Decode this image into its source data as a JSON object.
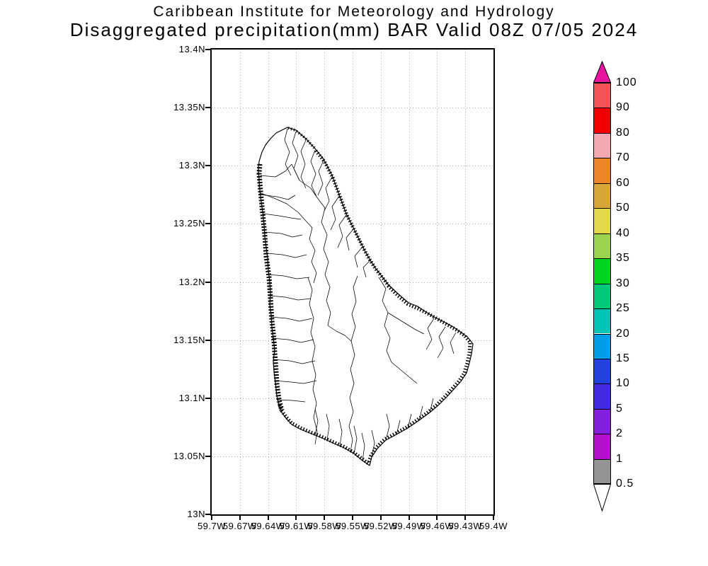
{
  "title": {
    "line1": "Caribbean Institute for Meteorology and Hydrology",
    "line2": "Disaggregated precipitation(mm) BAR Valid 08Z 07/05 2024"
  },
  "map": {
    "y_axis": {
      "labels": [
        "13.4N",
        "13.35N",
        "13.3N",
        "13.25N",
        "13.2N",
        "13.15N",
        "13.1N",
        "13.05N",
        "13N"
      ]
    },
    "x_axis": {
      "labels": [
        "59.7W",
        "59.67W",
        "59.64W",
        "59.61W",
        "59.58W",
        "59.55W",
        "59.52W",
        "59.49W",
        "59.46W",
        "59.43W",
        "59.4W"
      ]
    },
    "border_color": "#000000",
    "gridline_color": "#b0b0b0",
    "coastline_color": "#000000",
    "land_fill": "#ffffff"
  },
  "colorbar": {
    "boundary_labels": [
      "100",
      "90",
      "80",
      "70",
      "60",
      "50",
      "40",
      "35",
      "30",
      "25",
      "20",
      "15",
      "10",
      "5",
      "2",
      "1",
      "0.5"
    ],
    "segments_top_to_bottom": [
      "#f25456",
      "#f20000",
      "#f4a9b0",
      "#ec8428",
      "#d6a636",
      "#e4d84a",
      "#9ad44e",
      "#00d41e",
      "#00c878",
      "#00c4b6",
      "#009ee8",
      "#2441db",
      "#4229e2",
      "#8220dc",
      "#b210c9",
      "#949494"
    ],
    "over_color": "#e8169e",
    "under_color": "#ffffff",
    "outline_color": "#000000"
  }
}
